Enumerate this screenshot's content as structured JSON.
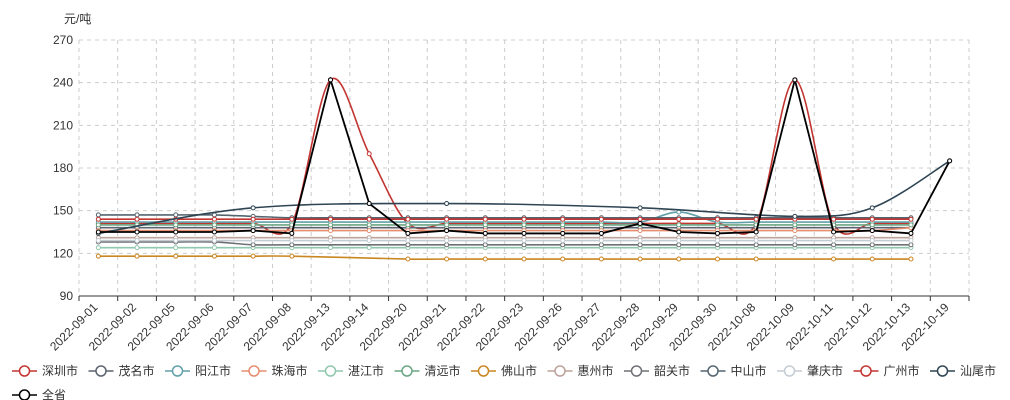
{
  "chart_data": {
    "type": "line",
    "ylabel": "元/吨",
    "ylim": [
      90,
      270
    ],
    "yticks": [
      90,
      120,
      150,
      180,
      210,
      240,
      270
    ],
    "grid": true,
    "legend_position": "bottom",
    "categories": [
      "2022-09-01",
      "2022-09-02",
      "2022-09-05",
      "2022-09-06",
      "2022-09-07",
      "2022-09-08",
      "2022-09-13",
      "2022-09-14",
      "2022-09-20",
      "2022-09-21",
      "2022-09-22",
      "2022-09-23",
      "2022-09-26",
      "2022-09-27",
      "2022-09-28",
      "2022-09-29",
      "2022-09-30",
      "2022-10-08",
      "2022-10-09",
      "2022-10-11",
      "2022-10-12",
      "2022-10-13",
      "2022-10-19"
    ],
    "series": [
      {
        "name": "深圳市",
        "color": "#c23531",
        "smooth": true,
        "values": [
          141,
          141,
          141,
          141,
          141,
          141,
          242,
          190,
          141,
          141,
          141,
          141,
          141,
          141,
          141,
          141,
          141,
          141,
          242,
          141,
          141,
          141,
          null
        ]
      },
      {
        "name": "茂名市",
        "color": "#5b6470",
        "smooth": true,
        "values": [
          138,
          138,
          138,
          138,
          138,
          138,
          138,
          138,
          138,
          138,
          138,
          138,
          138,
          138,
          138,
          138,
          138,
          138,
          138,
          138,
          138,
          138,
          null
        ]
      },
      {
        "name": "阳江市",
        "color": "#61a0a8",
        "smooth": true,
        "values": [
          142,
          142,
          142,
          142,
          142,
          142,
          142,
          142,
          142,
          142,
          142,
          142,
          142,
          142,
          142,
          149,
          142,
          142,
          142,
          142,
          142,
          142,
          null
        ]
      },
      {
        "name": "珠海市",
        "color": "#e58d6e",
        "smooth": true,
        "values": [
          136,
          136,
          136,
          136,
          136,
          136,
          136,
          136,
          136,
          136,
          136,
          136,
          136,
          136,
          136,
          136,
          136,
          136,
          136,
          136,
          136,
          138,
          null
        ]
      },
      {
        "name": "湛江市",
        "color": "#91c7ae",
        "smooth": true,
        "values": [
          124,
          124,
          124,
          124,
          124,
          124,
          124,
          124,
          124,
          124,
          124,
          124,
          124,
          124,
          124,
          124,
          124,
          124,
          124,
          124,
          124,
          124,
          null
        ]
      },
      {
        "name": "清远市",
        "color": "#6ba684",
        "smooth": true,
        "values": [
          140,
          140,
          140,
          140,
          140,
          140,
          140,
          140,
          140,
          140,
          140,
          140,
          140,
          140,
          140,
          140,
          140,
          140,
          140,
          140,
          140,
          140,
          null
        ]
      },
      {
        "name": "佛山市",
        "color": "#ca8622",
        "smooth": true,
        "values": [
          118,
          118,
          118,
          118,
          118,
          118,
          null,
          null,
          116,
          116,
          116,
          116,
          116,
          116,
          116,
          116,
          116,
          116,
          null,
          116,
          116,
          116,
          null
        ]
      },
      {
        "name": "惠州市",
        "color": "#bda29a",
        "smooth": true,
        "values": [
          131,
          131,
          131,
          131,
          131,
          131,
          131,
          131,
          131,
          131,
          131,
          131,
          131,
          131,
          131,
          131,
          131,
          131,
          131,
          131,
          131,
          131,
          null
        ]
      },
      {
        "name": "韶关市",
        "color": "#6e7074",
        "smooth": true,
        "values": [
          128,
          128,
          128,
          128,
          126,
          126,
          null,
          null,
          126,
          126,
          126,
          126,
          126,
          126,
          126,
          126,
          126,
          126,
          126,
          126,
          126,
          126,
          null
        ]
      },
      {
        "name": "中山市",
        "color": "#546570",
        "smooth": true,
        "values": [
          147,
          147,
          147,
          147,
          146,
          145,
          145,
          145,
          145,
          145,
          145,
          145,
          145,
          145,
          145,
          145,
          145,
          145,
          145,
          145,
          145,
          145,
          null
        ]
      },
      {
        "name": "肇庆市",
        "color": "#c4ccd3",
        "smooth": true,
        "values": [
          129,
          129,
          129,
          129,
          129,
          129,
          129,
          129,
          129,
          129,
          129,
          129,
          129,
          129,
          129,
          129,
          129,
          129,
          129,
          129,
          129,
          129,
          null
        ]
      },
      {
        "name": "广州市",
        "color": "#c23531",
        "smooth": true,
        "values": [
          144,
          144,
          144,
          144,
          144,
          144,
          144,
          144,
          144,
          144,
          144,
          144,
          144,
          144,
          144,
          144,
          144,
          144,
          144,
          144,
          144,
          144,
          null
        ]
      },
      {
        "name": "汕尾市",
        "color": "#2f4554",
        "smooth": true,
        "values": [
          134,
          null,
          null,
          null,
          152,
          null,
          null,
          null,
          null,
          155,
          null,
          null,
          null,
          null,
          152,
          null,
          null,
          null,
          146,
          null,
          152,
          null,
          185
        ]
      },
      {
        "name": "全省",
        "color": "#000000",
        "smooth": false,
        "values": [
          135,
          135,
          135,
          135,
          136,
          134,
          242,
          155,
          134,
          136,
          134,
          134,
          134,
          134,
          141,
          135,
          134,
          135,
          242,
          135,
          136,
          134,
          185
        ]
      }
    ]
  }
}
